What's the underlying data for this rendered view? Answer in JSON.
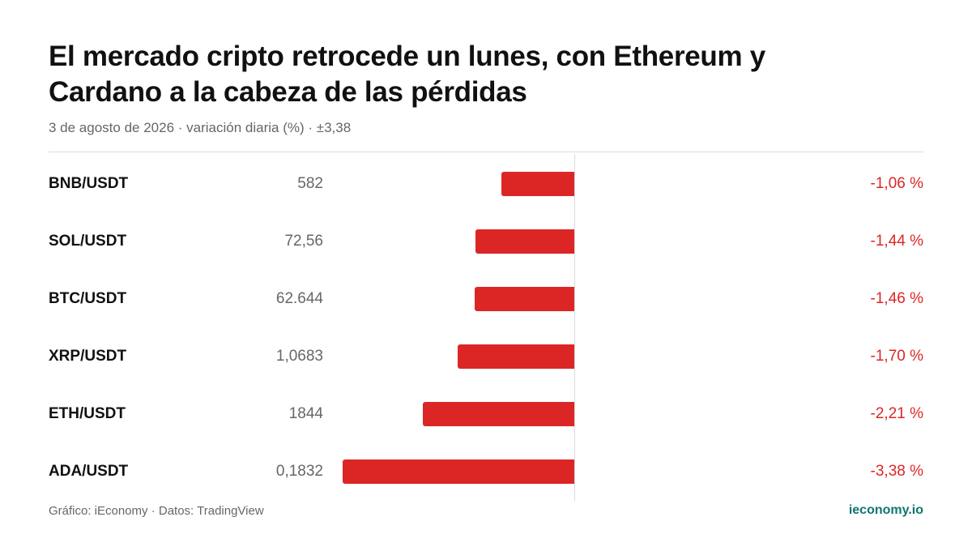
{
  "header": {
    "title": "El mercado cripto retrocede un lunes, con Ethereum y Cardano a la cabeza de las pérdidas",
    "subtitle": "3 de agosto de 2026 · variación diaria (%) · ±3,38"
  },
  "footer": {
    "source": "Gráfico: iEconomy · Datos: TradingView",
    "brand": "ieconomy.io"
  },
  "colors": {
    "bar": "#dc2626",
    "brand": "#0f766e"
  },
  "chart_data": {
    "type": "bar",
    "orientation": "horizontal",
    "title": "El mercado cripto retrocede un lunes, con Ethereum y Cardano a la cabeza de las pérdidas",
    "subtitle": "3 de agosto de 2026 · variación diaria (%) · ±3,38",
    "xlim": [
      -3.38,
      3.38
    ],
    "grid": false,
    "categories": [
      "BNB/USDT",
      "SOL/USDT",
      "BTC/USDT",
      "XRP/USDT",
      "ETH/USDT",
      "ADA/USDT"
    ],
    "prices": [
      "582",
      "72,56",
      "62.644",
      "1,0683",
      "1844",
      "0,1832"
    ],
    "values": [
      -1.06,
      -1.44,
      -1.46,
      -1.7,
      -2.21,
      -3.38
    ],
    "value_labels": [
      "-1,06 %",
      "-1,44 %",
      "-1,46 %",
      "-1,70 %",
      "-2,21 %",
      "-3,38 %"
    ]
  }
}
